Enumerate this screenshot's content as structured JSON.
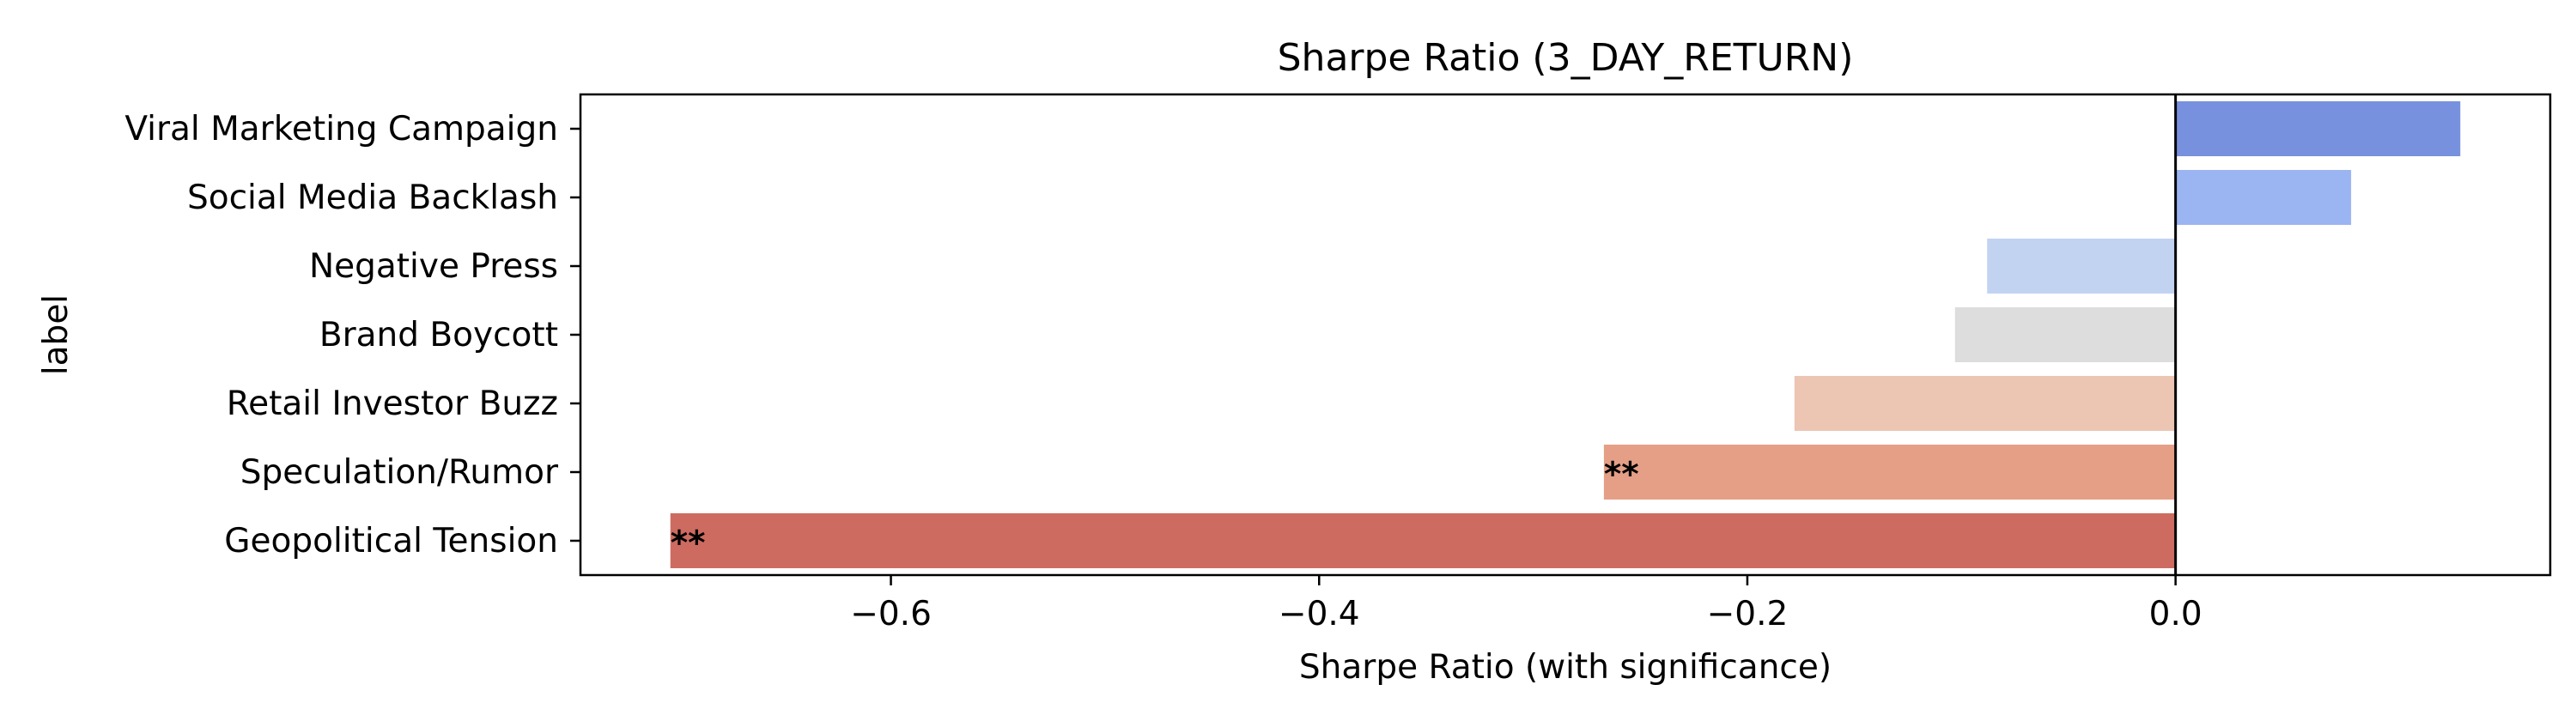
{
  "chart_data": {
    "type": "bar",
    "orientation": "horizontal",
    "title": "Sharpe Ratio (3_DAY_RETURN)",
    "xlabel": "Sharpe Ratio (with significance)",
    "ylabel": "label",
    "xlim": [
      -0.745,
      0.175
    ],
    "xticks": [
      -0.6,
      -0.4,
      -0.2,
      0.0
    ],
    "xtick_labels": [
      "−0.6",
      "−0.4",
      "−0.2",
      "0.0"
    ],
    "grid": false,
    "legend": "none",
    "zero_line": true,
    "categories": [
      "Viral Marketing Campaign",
      "Social Media Backlash",
      "Negative Press",
      "Brand Boycott",
      "Retail Investor Buzz",
      "Speculation/Rumor",
      "Geopolitical Tension"
    ],
    "values": [
      0.133,
      0.082,
      -0.088,
      -0.103,
      -0.178,
      -0.267,
      -0.703
    ],
    "significance": [
      "",
      "",
      "",
      "",
      "",
      "**",
      "**"
    ],
    "colors": [
      "#7891de",
      "#9bb5f3",
      "#c2d3f2",
      "#dddddd",
      "#ecc5b3",
      "#e59f87",
      "#cd6b61"
    ]
  }
}
